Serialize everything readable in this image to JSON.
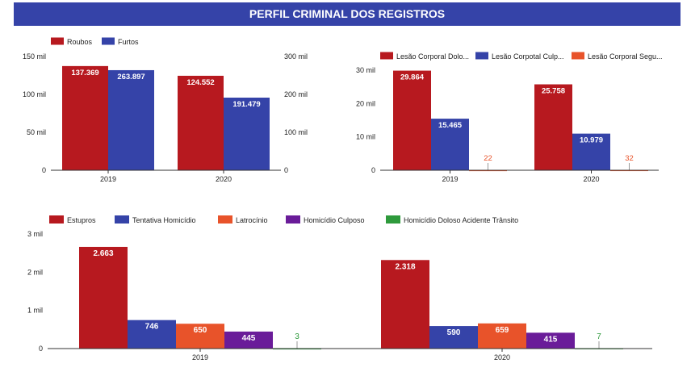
{
  "header": {
    "title": "PERFIL CRIMINAL DOS REGISTROS"
  },
  "chart_data": [
    {
      "type": "bar",
      "categories": [
        "2019",
        "2020"
      ],
      "series": [
        {
          "name": "Roubos",
          "values": [
            137369,
            124552
          ],
          "labels": [
            "137.369",
            "124.552"
          ],
          "color": "#b7191f",
          "axis": "left"
        },
        {
          "name": "Furtos",
          "values": [
            263897,
            191479
          ],
          "labels": [
            "263.897",
            "191.479"
          ],
          "color": "#3543a8",
          "axis": "right"
        }
      ],
      "left_axis": {
        "ylim": [
          0,
          150000
        ],
        "ticks": [
          0,
          50000,
          100000,
          150000
        ],
        "tick_labels": [
          "0",
          "50 mil",
          "100 mil",
          "150 mil"
        ]
      },
      "right_axis": {
        "ylim": [
          0,
          300000
        ],
        "ticks": [
          0,
          100000,
          200000,
          300000
        ],
        "tick_labels": [
          "0",
          "100 mil",
          "200 mil",
          "300 mil"
        ]
      },
      "legend_position": "top-left"
    },
    {
      "type": "bar",
      "categories": [
        "2019",
        "2020"
      ],
      "series": [
        {
          "name": "Lesão Corporal Dolo...",
          "values": [
            29864,
            25758
          ],
          "labels": [
            "29.864",
            "25.758"
          ],
          "color": "#b7191f"
        },
        {
          "name": "Lesão Corpotal Culp...",
          "values": [
            15465,
            10979
          ],
          "labels": [
            "15.465",
            "10.979"
          ],
          "color": "#3543a8"
        },
        {
          "name": "Lesão Corporal Segu...",
          "values": [
            22,
            32
          ],
          "labels": [
            "22",
            "32"
          ],
          "color": "#e8532a"
        }
      ],
      "axis": {
        "ylim": [
          0,
          30000
        ],
        "ticks": [
          0,
          10000,
          20000,
          30000
        ],
        "tick_labels": [
          "0",
          "10 mil",
          "20 mil",
          "30 mil"
        ]
      },
      "legend_position": "top-left"
    },
    {
      "type": "bar",
      "categories": [
        "2019",
        "2020"
      ],
      "series": [
        {
          "name": "Estupros",
          "values": [
            2663,
            2318
          ],
          "labels": [
            "2.663",
            "2.318"
          ],
          "color": "#b7191f"
        },
        {
          "name": "Tentativa Homicídio",
          "values": [
            746,
            590
          ],
          "labels": [
            "746",
            "590"
          ],
          "color": "#3543a8"
        },
        {
          "name": "Latrocínio",
          "values": [
            650,
            659
          ],
          "labels": [
            "650",
            "659"
          ],
          "color": "#e8532a"
        },
        {
          "name": "Homicídio Culposo",
          "values": [
            445,
            415
          ],
          "labels": [
            "445",
            "415"
          ],
          "color": "#6a1c99"
        },
        {
          "name": "Homicídio Doloso Acidente Trânsito",
          "values": [
            3,
            7
          ],
          "labels": [
            "3",
            "7"
          ],
          "color": "#2e9a3c"
        }
      ],
      "axis": {
        "ylim": [
          0,
          3000
        ],
        "ticks": [
          0,
          1000,
          2000,
          3000
        ],
        "tick_labels": [
          "0",
          "1 mil",
          "2 mil",
          "3 mil"
        ]
      },
      "legend_position": "top-left"
    }
  ]
}
